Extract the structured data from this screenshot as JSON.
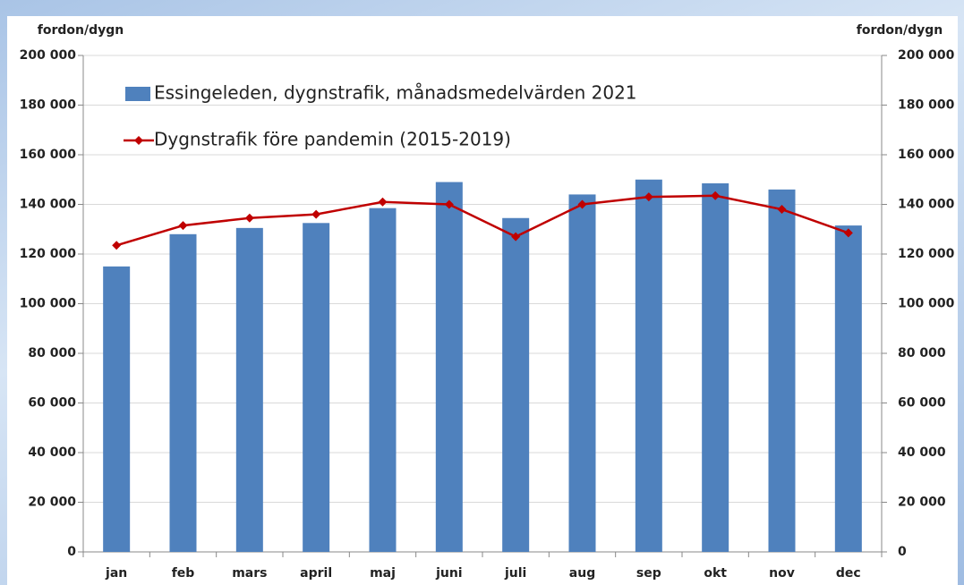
{
  "chart_data": {
    "type": "bar-line",
    "y_label": "fordon/dygn",
    "y2_label": "fordon/dygn",
    "categories": [
      "jan",
      "feb",
      "mars",
      "april",
      "maj",
      "juni",
      "juli",
      "aug",
      "sep",
      "okt",
      "nov",
      "dec"
    ],
    "series": [
      {
        "name": "Essingeleden, dygnstrafik, månadsmedelvärden 2021",
        "type": "bar",
        "color": "#4f81bd",
        "values": [
          115000,
          128000,
          130500,
          132500,
          138500,
          149000,
          134500,
          144000,
          150000,
          148500,
          146000,
          131500
        ]
      },
      {
        "name": "Dygnstrafik före pandemin (2015-2019)",
        "type": "line",
        "color": "#c00000",
        "axis": "y2",
        "values": [
          123500,
          131500,
          134500,
          136000,
          141000,
          140000,
          127000,
          140000,
          143000,
          143500,
          138000,
          128500
        ]
      }
    ],
    "ylim": [
      0,
      200000
    ],
    "yticks": [
      {
        "value": 0,
        "label": "0"
      },
      {
        "value": 20000,
        "label": "20 000"
      },
      {
        "value": 40000,
        "label": "40 000"
      },
      {
        "value": 60000,
        "label": "60 000"
      },
      {
        "value": 80000,
        "label": "80 000"
      },
      {
        "value": 100000,
        "label": "100 000"
      },
      {
        "value": 120000,
        "label": "120 000"
      },
      {
        "value": 140000,
        "label": "140 000"
      },
      {
        "value": 160000,
        "label": "160 000"
      },
      {
        "value": 180000,
        "label": "180 000"
      },
      {
        "value": 200000,
        "label": "200 000"
      }
    ],
    "y2lim": [
      0,
      200000
    ],
    "y2ticks": [
      {
        "value": 0,
        "label": "0"
      },
      {
        "value": 20000,
        "label": "20 000"
      },
      {
        "value": 40000,
        "label": "40 000"
      },
      {
        "value": 60000,
        "label": "60 000"
      },
      {
        "value": 80000,
        "label": "80 000"
      },
      {
        "value": 100000,
        "label": "100 000"
      },
      {
        "value": 120000,
        "label": "120 000"
      },
      {
        "value": 140000,
        "label": "140 000"
      },
      {
        "value": 160000,
        "label": "160 000"
      },
      {
        "value": 180000,
        "label": "180 000"
      },
      {
        "value": 200000,
        "label": "200 000"
      }
    ]
  }
}
